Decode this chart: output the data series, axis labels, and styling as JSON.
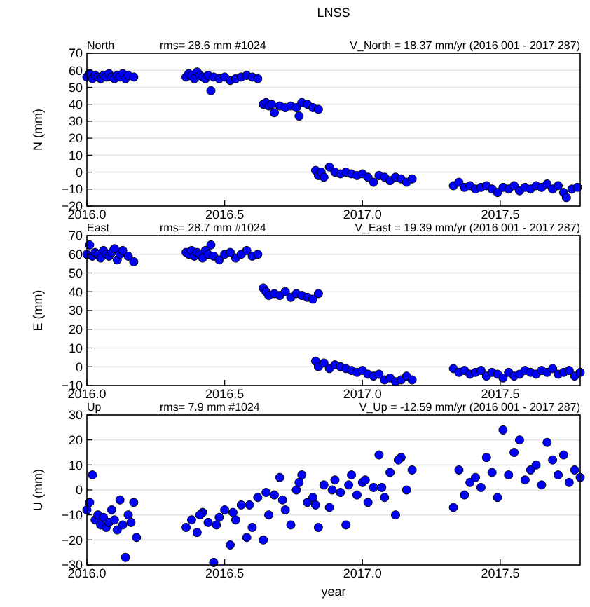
{
  "chart_data": [
    {
      "type": "scatter",
      "title": "LNSS",
      "annotations": [
        "North",
        "rms= 28.6 mm #1024",
        "V_North = 18.37 mm/yr (2016 001 - 2017 287)"
      ],
      "ylabel": "N (mm)",
      "marker": "circle",
      "grid": "y",
      "xlim": [
        2016.0,
        2017.79
      ],
      "xticks": [
        {
          "value": 2016,
          "label": "2016.0"
        },
        {
          "value": 2016.5,
          "label": "2016.5"
        },
        {
          "value": 2017,
          "label": "2017.0"
        },
        {
          "value": 2017.5,
          "label": "2017.5"
        }
      ],
      "ylim": [
        -20,
        70
      ],
      "yticks": [
        {
          "value": -20,
          "label": "−20"
        },
        {
          "value": -10,
          "label": "−10"
        },
        0,
        10,
        20,
        30,
        40,
        50,
        60,
        70
      ],
      "series": [
        {
          "color": "#0000ff",
          "x": [
            2016.0,
            2016.01,
            2016.02,
            2016.03,
            2016.04,
            2016.05,
            2016.06,
            2016.07,
            2016.08,
            2016.09,
            2016.1,
            2016.11,
            2016.12,
            2016.13,
            2016.14,
            2016.15,
            2016.17,
            2016.36,
            2016.37,
            2016.38,
            2016.39,
            2016.4,
            2016.41,
            2016.42,
            2016.43,
            2016.44,
            2016.45,
            2016.46,
            2016.48,
            2016.5,
            2016.52,
            2016.54,
            2016.56,
            2016.58,
            2016.6,
            2016.62,
            2016.64,
            2016.65,
            2016.66,
            2016.67,
            2016.68,
            2016.7,
            2016.72,
            2016.74,
            2016.76,
            2016.77,
            2016.78,
            2016.8,
            2016.82,
            2016.84,
            2016.83,
            2016.84,
            2016.85,
            2016.86,
            2016.88,
            2016.9,
            2016.92,
            2016.94,
            2016.96,
            2016.98,
            2017.0,
            2017.02,
            2017.04,
            2017.06,
            2017.08,
            2017.1,
            2017.12,
            2017.14,
            2017.16,
            2017.18,
            2017.33,
            2017.35,
            2017.37,
            2017.39,
            2017.41,
            2017.43,
            2017.45,
            2017.47,
            2017.49,
            2017.51,
            2017.53,
            2017.55,
            2017.57,
            2017.59,
            2017.61,
            2017.63,
            2017.65,
            2017.67,
            2017.69,
            2017.71,
            2017.73,
            2017.74,
            2017.76,
            2017.78
          ],
          "values": [
            56,
            58,
            55,
            57,
            56,
            55,
            57,
            56,
            58,
            56,
            55,
            57,
            56,
            58,
            55,
            57,
            56,
            56,
            58,
            57,
            55,
            59,
            57,
            56,
            55,
            57,
            48,
            56,
            55,
            56,
            54,
            55,
            56,
            57,
            56,
            55,
            40,
            41,
            39,
            40,
            35,
            39,
            38,
            39,
            38,
            33,
            41,
            40,
            38,
            37,
            1,
            -2,
            0,
            -3,
            3,
            0,
            -1,
            0,
            -1,
            -2,
            -1,
            -3,
            -6,
            -2,
            -3,
            -5,
            -3,
            -4,
            -6,
            -4,
            -8,
            -6,
            -9,
            -8,
            -10,
            -9,
            -8,
            -10,
            -12,
            -9,
            -10,
            -8,
            -11,
            -9,
            -10,
            -8,
            -9,
            -7,
            -10,
            -8,
            -12,
            -15,
            -10,
            -9
          ]
        }
      ]
    },
    {
      "type": "scatter",
      "annotations": [
        "East",
        "rms= 28.7 mm #1024",
        "V_East = 19.39 mm/yr (2016 001 - 2017 287)"
      ],
      "ylabel": "E (mm)",
      "marker": "circle",
      "grid": "y",
      "xlim": [
        2016.0,
        2017.79
      ],
      "xticks": [
        {
          "value": 2016,
          "label": "2016.0"
        },
        {
          "value": 2016.5,
          "label": "2016.5"
        },
        {
          "value": 2017,
          "label": "2017.0"
        },
        {
          "value": 2017.5,
          "label": "2017.5"
        }
      ],
      "ylim": [
        -10,
        70
      ],
      "yticks": [
        {
          "value": -10,
          "label": "−10"
        },
        0,
        10,
        20,
        30,
        40,
        50,
        60,
        70
      ],
      "series": [
        {
          "color": "#0000ff",
          "x": [
            2016.0,
            2016.01,
            2016.02,
            2016.03,
            2016.04,
            2016.05,
            2016.06,
            2016.07,
            2016.08,
            2016.09,
            2016.1,
            2016.11,
            2016.12,
            2016.13,
            2016.15,
            2016.17,
            2016.36,
            2016.37,
            2016.38,
            2016.39,
            2016.4,
            2016.41,
            2016.42,
            2016.43,
            2016.44,
            2016.45,
            2016.46,
            2016.48,
            2016.5,
            2016.52,
            2016.54,
            2016.56,
            2016.58,
            2016.6,
            2016.62,
            2016.64,
            2016.65,
            2016.66,
            2016.68,
            2016.7,
            2016.72,
            2016.74,
            2016.76,
            2016.78,
            2016.8,
            2016.82,
            2016.84,
            2016.83,
            2016.84,
            2016.86,
            2016.88,
            2016.9,
            2016.92,
            2016.94,
            2016.96,
            2016.98,
            2017.0,
            2017.02,
            2017.04,
            2017.06,
            2017.08,
            2017.1,
            2017.12,
            2017.14,
            2017.16,
            2017.18,
            2017.33,
            2017.35,
            2017.37,
            2017.39,
            2017.41,
            2017.43,
            2017.45,
            2017.47,
            2017.49,
            2017.51,
            2017.53,
            2017.55,
            2017.57,
            2017.59,
            2017.61,
            2017.63,
            2017.65,
            2017.67,
            2017.69,
            2017.71,
            2017.73,
            2017.75,
            2017.77,
            2017.79
          ],
          "values": [
            60,
            65,
            59,
            61,
            60,
            58,
            62,
            60,
            59,
            61,
            63,
            57,
            60,
            62,
            59,
            56,
            61,
            60,
            62,
            59,
            61,
            60,
            58,
            62,
            60,
            65,
            59,
            57,
            60,
            61,
            58,
            60,
            62,
            59,
            60,
            42,
            40,
            38,
            39,
            38,
            40,
            37,
            39,
            38,
            37,
            36,
            39,
            3,
            0,
            2,
            -1,
            1,
            0,
            -1,
            -2,
            -3,
            -2,
            -4,
            -5,
            -4,
            -7,
            -6,
            -8,
            -7,
            -5,
            -7,
            -1,
            -3,
            -2,
            -4,
            -3,
            -2,
            -5,
            -3,
            -4,
            -6,
            -3,
            -5,
            -4,
            -2,
            -3,
            -4,
            -2,
            -3,
            -1,
            -4,
            -3,
            -2,
            -5,
            -3
          ]
        }
      ]
    },
    {
      "type": "scatter",
      "annotations": [
        "Up",
        "rms= 7.9 mm #1024",
        "V_Up = -12.59 mm/yr (2016 001 - 2017 287)"
      ],
      "xlabel": "year",
      "ylabel": "U (mm)",
      "marker": "circle",
      "grid": "y",
      "xlim": [
        2016.0,
        2017.79
      ],
      "xticks": [
        {
          "value": 2016,
          "label": "2016.0"
        },
        {
          "value": 2016.5,
          "label": "2016.5"
        },
        {
          "value": 2017,
          "label": "2017.0"
        },
        {
          "value": 2017.5,
          "label": "2017.5"
        }
      ],
      "ylim": [
        -30,
        30
      ],
      "yticks": [
        {
          "value": -30,
          "label": "−30"
        },
        {
          "value": -20,
          "label": "−20"
        },
        {
          "value": -10,
          "label": "−10"
        },
        0,
        10,
        20,
        30
      ],
      "series": [
        {
          "color": "#0000ff",
          "x": [
            2016.0,
            2016.01,
            2016.02,
            2016.03,
            2016.04,
            2016.05,
            2016.06,
            2016.07,
            2016.08,
            2016.09,
            2016.1,
            2016.11,
            2016.12,
            2016.13,
            2016.14,
            2016.15,
            2016.16,
            2016.17,
            2016.18,
            2016.36,
            2016.38,
            2016.4,
            2016.42,
            2016.44,
            2016.46,
            2016.48,
            2016.5,
            2016.52,
            2016.54,
            2016.56,
            2016.58,
            2016.6,
            2016.62,
            2016.64,
            2016.66,
            2016.68,
            2016.7,
            2016.72,
            2016.74,
            2016.76,
            2016.78,
            2016.8,
            2016.82,
            2016.84,
            2016.86,
            2016.88,
            2016.9,
            2016.92,
            2016.94,
            2016.96,
            2016.98,
            2017.0,
            2017.02,
            2017.04,
            2017.06,
            2017.08,
            2017.1,
            2017.12,
            2017.14,
            2017.16,
            2017.18,
            2016.41,
            2016.47,
            2016.53,
            2016.59,
            2016.65,
            2016.71,
            2016.77,
            2016.83,
            2016.89,
            2016.95,
            2017.01,
            2017.07,
            2017.13,
            2017.33,
            2017.35,
            2017.37,
            2017.39,
            2017.41,
            2017.43,
            2017.45,
            2017.47,
            2017.49,
            2017.51,
            2017.53,
            2017.55,
            2017.57,
            2017.59,
            2017.61,
            2017.63,
            2017.65,
            2017.67,
            2017.69,
            2017.71,
            2017.73,
            2017.75,
            2017.77,
            2017.79
          ],
          "values": [
            -8,
            -5,
            6,
            -12,
            -10,
            -14,
            -11,
            -15,
            -13,
            -8,
            -12,
            -16,
            -4,
            -14,
            -27,
            -10,
            -13,
            -5,
            -19,
            -15,
            -12,
            -17,
            -9,
            -13,
            -29,
            -11,
            -8,
            -22,
            -12,
            -6,
            -19,
            -15,
            -3,
            -20,
            -10,
            -2,
            5,
            -8,
            -14,
            0,
            6,
            -5,
            -3,
            -15,
            2,
            -7,
            4,
            -1,
            -14,
            6,
            -2,
            3,
            -5,
            1,
            14,
            -3,
            7,
            -10,
            13,
            0,
            8,
            -10,
            -14,
            -9,
            -6,
            -1,
            -4,
            3,
            -6,
            0,
            2,
            4,
            1,
            12,
            -7,
            8,
            -2,
            3,
            5,
            1,
            13,
            7,
            -3,
            24,
            6,
            15,
            20,
            4,
            8,
            10,
            2,
            19,
            12,
            6,
            14,
            3,
            8,
            5
          ]
        }
      ]
    }
  ]
}
